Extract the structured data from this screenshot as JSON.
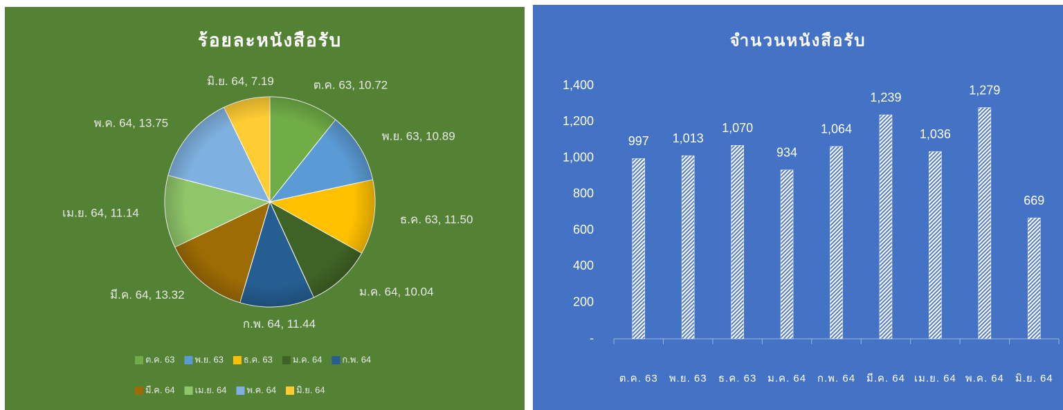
{
  "chart_data": [
    {
      "type": "pie",
      "title": "ร้อยละหนังสือรับ",
      "categories": [
        "ต.ค. 63",
        "พ.ย. 63",
        "ธ.ค. 63",
        "ม.ค. 64",
        "ก.พ. 64",
        "มี.ค. 64",
        "เม.ย. 64",
        "พ.ค. 64",
        "มิ.ย. 64"
      ],
      "values": [
        10.72,
        10.89,
        11.5,
        10.04,
        11.44,
        13.32,
        11.14,
        13.75,
        7.19
      ],
      "value_labels": [
        "ต.ค. 63, 10.72",
        "พ.ย. 63, 10.89",
        "ธ.ค. 63, 11.50",
        "ม.ค. 64, 10.04",
        "ก.พ. 64, 11.44",
        "มี.ค. 64, 13.32",
        "เม.ย. 64, 11.14",
        "พ.ค. 64, 13.75",
        "มิ.ย. 64, 7.19"
      ],
      "colors": [
        "#70ad47",
        "#5b9bd5",
        "#ffc000",
        "#3f6326",
        "#255e91",
        "#9e6c05",
        "#90c66a",
        "#7fb1e0",
        "#ffcd33"
      ],
      "legend": "bottom"
    },
    {
      "type": "bar",
      "title": "จำนวนหนังสือรับ",
      "categories": [
        "ต.ค. 63",
        "พ.ย. 63",
        "ธ.ค. 63",
        "ม.ค. 64",
        "ก.พ. 64",
        "มี.ค. 64",
        "เม.ย. 64",
        "พ.ค. 64",
        "มิ.ย. 64"
      ],
      "values": [
        997,
        1013,
        1070,
        934,
        1064,
        1239,
        1036,
        1279,
        669
      ],
      "value_labels": [
        "997",
        "1,013",
        "1,070",
        "934",
        "1,064",
        "1,239",
        "1,036",
        "1,279",
        "669"
      ],
      "ylim": [
        0,
        1400
      ],
      "yticks": [
        {
          "value": 0,
          "label": "-"
        },
        200,
        400,
        600,
        800,
        {
          "value": 1000,
          "label": "1,000"
        },
        {
          "value": 1200,
          "label": "1,200"
        },
        {
          "value": 1400,
          "label": "1,400"
        }
      ],
      "color": "#ffffff"
    }
  ]
}
